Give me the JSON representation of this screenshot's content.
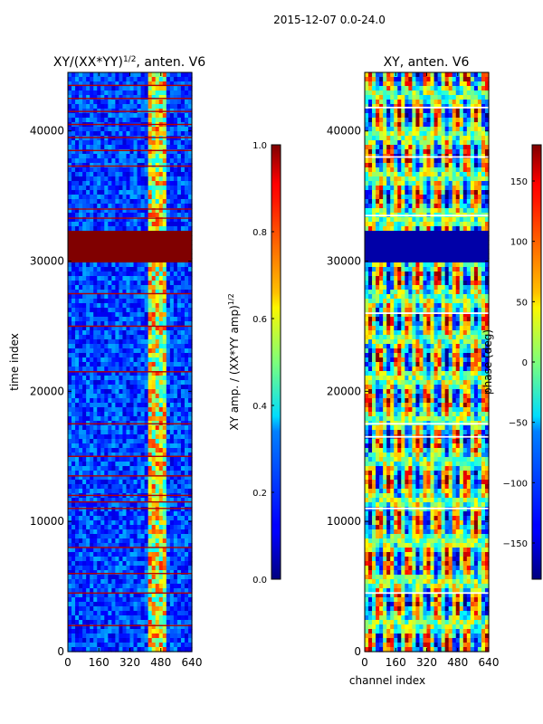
{
  "suptitle": "2015-12-07 0.0-24.0",
  "chart_data": [
    {
      "type": "heatmap",
      "title_prefix": "XY/(XX*YY)",
      "title_exponent": "1/2",
      "title_suffix": ", anten. V6",
      "xlabel": "",
      "ylabel": "time index",
      "xlim": [
        0,
        640
      ],
      "ylim": [
        0,
        44500
      ],
      "xticks": [
        0,
        160,
        320,
        480,
        640
      ],
      "yticks": [
        0,
        10000,
        20000,
        30000,
        40000
      ],
      "colorbar": {
        "label_prefix": "XY amp. / (XX*YY amp)",
        "label_exponent": "1/2",
        "vmin": 0.0,
        "vmax": 1.0,
        "ticks": [
          "0.0",
          "0.2",
          "0.4",
          "0.6",
          "0.8",
          "1.0"
        ],
        "tick_values": [
          0.0,
          0.2,
          0.4,
          0.6,
          0.8,
          1.0
        ]
      },
      "features": {
        "saturated_band_time": [
          29800,
          32300
        ],
        "bright_channel_range": [
          415,
          500
        ],
        "flag_row_times": [
          2000,
          4500,
          6000,
          8000,
          11000,
          11500,
          12000,
          13500,
          15000,
          17500,
          21500,
          25000,
          27500,
          33300,
          34000,
          37300,
          38500,
          39500,
          40500,
          41500,
          42500,
          43500
        ]
      }
    },
    {
      "type": "heatmap",
      "title": "XY, anten. V6",
      "xlabel": "channel index",
      "ylabel": "",
      "xlim": [
        0,
        640
      ],
      "ylim": [
        0,
        44500
      ],
      "xticks": [
        0,
        160,
        320,
        480,
        640
      ],
      "yticks": [
        0,
        10000,
        20000,
        30000,
        40000
      ],
      "colorbar": {
        "label": "phase (deg)",
        "vmin": -180,
        "vmax": 180,
        "ticks": [
          "−150",
          "−100",
          "−50",
          "0",
          "50",
          "100",
          "150"
        ],
        "tick_values": [
          -150,
          -100,
          -50,
          0,
          50,
          100,
          150
        ]
      },
      "features": {
        "constant_band_time": [
          29800,
          32300
        ],
        "white_gap_times": [
          4500,
          11000,
          16500,
          17500,
          26000,
          33500,
          38000,
          41800
        ],
        "stripe_channel_spacing": 50
      }
    }
  ]
}
